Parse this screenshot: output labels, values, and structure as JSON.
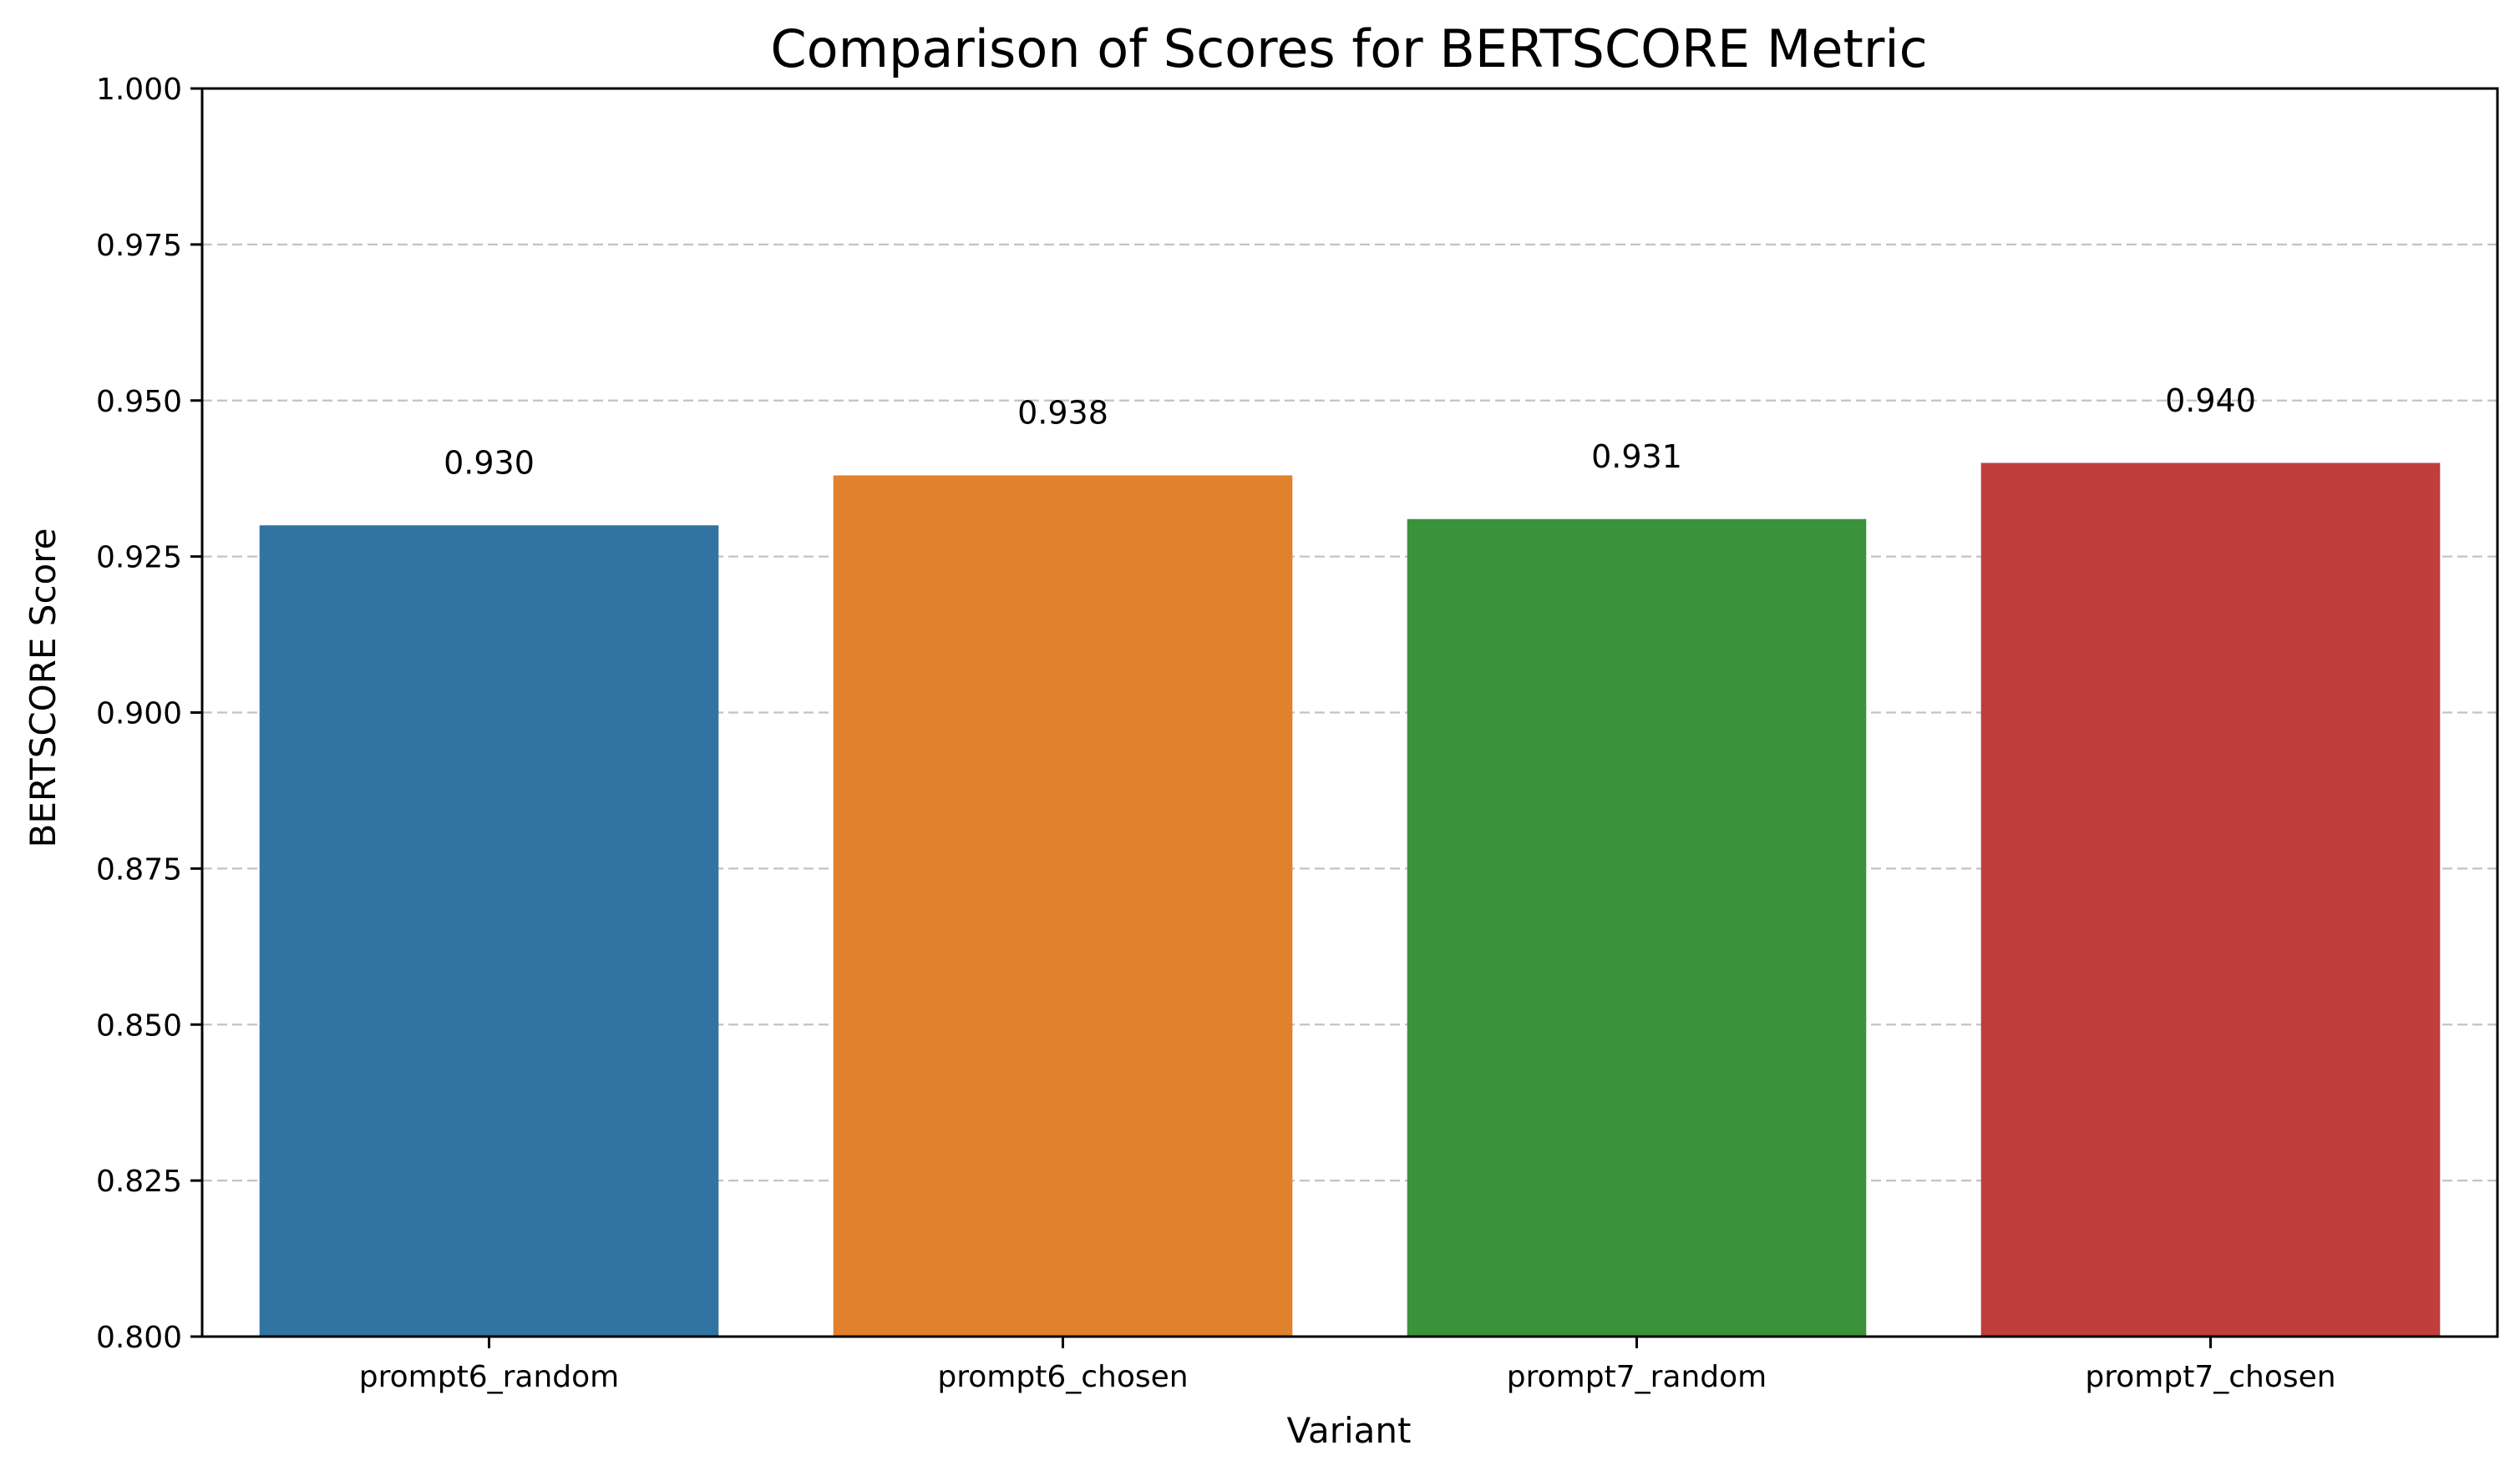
{
  "chart_data": {
    "type": "bar",
    "title": "Comparison of Scores for BERTSCORE Metric",
    "xlabel": "Variant",
    "ylabel": "BERTSCORE Score",
    "categories": [
      "prompt6_random",
      "prompt6_chosen",
      "prompt7_random",
      "prompt7_chosen"
    ],
    "values": [
      0.93,
      0.938,
      0.931,
      0.94
    ],
    "value_labels": [
      "0.930",
      "0.938",
      "0.931",
      "0.940"
    ],
    "colors": [
      "#3274a1",
      "#e1812c",
      "#3a923a",
      "#c03d3e"
    ],
    "ylim": [
      0.8,
      1.0
    ],
    "yticks": [
      0.8,
      0.825,
      0.85,
      0.875,
      0.9,
      0.925,
      0.95,
      0.975,
      1.0
    ],
    "ytick_labels": [
      "0.800",
      "0.825",
      "0.850",
      "0.875",
      "0.900",
      "0.925",
      "0.950",
      "0.975",
      "1.000"
    ],
    "grid": "y-dashed",
    "legend": "none"
  }
}
